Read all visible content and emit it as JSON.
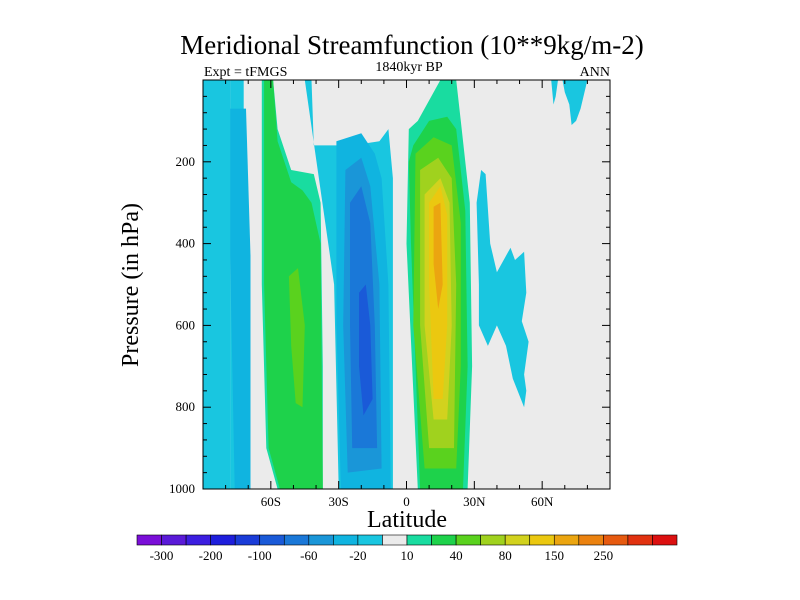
{
  "chart_data": {
    "type": "heatmap",
    "title": "Meridional Streamfunction (10**9kg/m-2)",
    "subtitle_center": "1840kyr BP",
    "subtitle_left": "Expt = tFMGS",
    "subtitle_right": "ANN",
    "xlabel": "Latitude",
    "ylabel": "Pressure (in hPa)",
    "xlim": [
      -90,
      90
    ],
    "ylim": [
      1000,
      0
    ],
    "x_ticks": [
      {
        "value": -60,
        "label": "60S"
      },
      {
        "value": -30,
        "label": "30S"
      },
      {
        "value": 0,
        "label": "0"
      },
      {
        "value": 30,
        "label": "30N"
      },
      {
        "value": 60,
        "label": "60N"
      }
    ],
    "y_ticks": [
      {
        "value": 200,
        "label": "200"
      },
      {
        "value": 400,
        "label": "400"
      },
      {
        "value": 600,
        "label": "600"
      },
      {
        "value": 800,
        "label": "800"
      },
      {
        "value": 1000,
        "label": "1000"
      }
    ],
    "colorbar": {
      "colors": [
        "#7a0fd8",
        "#5a1ad8",
        "#3c1ee0",
        "#1e1edc",
        "#1a3cd8",
        "#1a5ad8",
        "#1a78d8",
        "#1a96d8",
        "#10b4e0",
        "#19c6e0",
        "#ebebeb",
        "#19dca0",
        "#1ed24b",
        "#5ad21e",
        "#a0d21e",
        "#d2d21e",
        "#ebc810",
        "#eba510",
        "#eb8210",
        "#e65a10",
        "#e13210",
        "#dc1010"
      ],
      "labels": [
        "-300",
        "-200",
        "-100",
        "-60",
        "-20",
        "10",
        "40",
        "80",
        "150",
        "250"
      ]
    },
    "field": [
      {
        "level": -10,
        "color": "#19c6e0",
        "poly": [
          [
            -78,
            0
          ],
          [
            -72,
            0
          ],
          [
            -72,
            1000
          ],
          [
            -78,
            1000
          ]
        ]
      },
      {
        "level": -20,
        "color": "#10b4e0",
        "poly": [
          [
            -78,
            70
          ],
          [
            -71,
            70
          ],
          [
            -69,
            430
          ],
          [
            -69,
            1000
          ],
          [
            -76,
            1000
          ],
          [
            -78,
            430
          ]
        ]
      },
      {
        "level": 10,
        "color": "#19dca0",
        "poly": [
          [
            -64,
            0
          ],
          [
            -59,
            0
          ],
          [
            -57,
            120
          ],
          [
            -51,
            220
          ],
          [
            -41,
            230
          ],
          [
            -38,
            300
          ],
          [
            -37,
            700
          ],
          [
            -37,
            1000
          ],
          [
            -57,
            1000
          ],
          [
            -62,
            900
          ],
          [
            -64,
            500
          ]
        ]
      },
      {
        "level": 40,
        "color": "#1ed24b",
        "poly": [
          [
            -63,
            0
          ],
          [
            -59,
            0
          ],
          [
            -57,
            150
          ],
          [
            -51,
            250
          ],
          [
            -46,
            270
          ],
          [
            -42,
            300
          ],
          [
            -38,
            400
          ],
          [
            -37,
            1000
          ],
          [
            -56,
            1000
          ],
          [
            -61,
            900
          ],
          [
            -63,
            500
          ]
        ]
      },
      {
        "level": 80,
        "color": "#5ad21e",
        "poly": [
          [
            -52,
            480
          ],
          [
            -48,
            460
          ],
          [
            -45,
            600
          ],
          [
            -46,
            800
          ],
          [
            -49,
            790
          ],
          [
            -51,
            650
          ]
        ]
      },
      {
        "level": -10,
        "color": "#19c6e0",
        "poly": [
          [
            -90,
            0
          ],
          [
            -78,
            0
          ],
          [
            -78,
            1000
          ],
          [
            -90,
            1000
          ]
        ]
      },
      {
        "level": -10,
        "color": "#19c6e0",
        "poly": [
          [
            -45,
            0
          ],
          [
            -42,
            0
          ],
          [
            -41,
            160
          ],
          [
            -24,
            160
          ],
          [
            -12,
            150
          ],
          [
            -8,
            120
          ],
          [
            -6,
            240
          ],
          [
            -6,
            1000
          ],
          [
            -30,
            1000
          ],
          [
            -32,
            500
          ]
        ]
      },
      {
        "level": -20,
        "color": "#10b4e0",
        "poly": [
          [
            -31,
            150
          ],
          [
            -20,
            130
          ],
          [
            -14,
            180
          ],
          [
            -11,
            240
          ],
          [
            -8,
            500
          ],
          [
            -7,
            1000
          ],
          [
            -29,
            1000
          ],
          [
            -31,
            600
          ]
        ]
      },
      {
        "level": -60,
        "color": "#1a96d8",
        "poly": [
          [
            -27,
            220
          ],
          [
            -20,
            190
          ],
          [
            -16,
            260
          ],
          [
            -12,
            500
          ],
          [
            -11,
            950
          ],
          [
            -26,
            960
          ],
          [
            -28,
            600
          ]
        ]
      },
      {
        "level": -100,
        "color": "#1a78d8",
        "poly": [
          [
            -25,
            300
          ],
          [
            -20,
            260
          ],
          [
            -16,
            350
          ],
          [
            -14,
            600
          ],
          [
            -13,
            900
          ],
          [
            -24,
            900
          ],
          [
            -25,
            600
          ]
        ]
      },
      {
        "level": -150,
        "color": "#1a5ad8",
        "poly": [
          [
            -21,
            520
          ],
          [
            -18,
            500
          ],
          [
            -16,
            600
          ],
          [
            -15,
            780
          ],
          [
            -19,
            820
          ],
          [
            -21,
            700
          ]
        ]
      },
      {
        "level": 10,
        "color": "#19dca0",
        "poly": [
          [
            15,
            0
          ],
          [
            22,
            0
          ],
          [
            24,
            100
          ],
          [
            28,
            300
          ],
          [
            29,
            700
          ],
          [
            27,
            1000
          ],
          [
            5,
            1000
          ],
          [
            0,
            400
          ],
          [
            1,
            120
          ],
          [
            5,
            100
          ]
        ]
      },
      {
        "level": 40,
        "color": "#1ed24b",
        "poly": [
          [
            3,
            160
          ],
          [
            10,
            100
          ],
          [
            18,
            90
          ],
          [
            22,
            120
          ],
          [
            26,
            320
          ],
          [
            27,
            700
          ],
          [
            25,
            1000
          ],
          [
            6,
            1000
          ],
          [
            2,
            400
          ],
          [
            1,
            200
          ]
        ]
      },
      {
        "level": 80,
        "color": "#5ad21e",
        "poly": [
          [
            4,
            180
          ],
          [
            12,
            140
          ],
          [
            20,
            160
          ],
          [
            24,
            350
          ],
          [
            24,
            700
          ],
          [
            22,
            950
          ],
          [
            8,
            950
          ],
          [
            3,
            600
          ]
        ]
      },
      {
        "level": 110,
        "color": "#a0d21e",
        "poly": [
          [
            6,
            220
          ],
          [
            14,
            190
          ],
          [
            20,
            240
          ],
          [
            22,
            500
          ],
          [
            21,
            900
          ],
          [
            10,
            900
          ],
          [
            6,
            600
          ]
        ]
      },
      {
        "level": 150,
        "color": "#d2d21e",
        "poly": [
          [
            8,
            280
          ],
          [
            15,
            240
          ],
          [
            19,
            300
          ],
          [
            20,
            600
          ],
          [
            18,
            830
          ],
          [
            12,
            830
          ],
          [
            8,
            600
          ]
        ]
      },
      {
        "level": 200,
        "color": "#ebc810",
        "poly": [
          [
            10,
            300
          ],
          [
            15,
            260
          ],
          [
            18,
            330
          ],
          [
            18,
            600
          ],
          [
            16,
            780
          ],
          [
            12,
            780
          ],
          [
            10,
            500
          ]
        ]
      },
      {
        "level": 250,
        "color": "#eba510",
        "poly": [
          [
            12,
            310
          ],
          [
            15,
            300
          ],
          [
            16,
            500
          ],
          [
            14,
            560
          ],
          [
            12,
            450
          ]
        ]
      },
      {
        "level": -10,
        "color": "#19c6e0",
        "poly": [
          [
            33,
            220
          ],
          [
            35,
            230
          ],
          [
            37,
            400
          ],
          [
            40,
            470
          ],
          [
            46,
            410
          ],
          [
            48,
            440
          ],
          [
            52,
            420
          ],
          [
            53,
            520
          ],
          [
            51,
            590
          ],
          [
            54,
            640
          ],
          [
            52,
            720
          ],
          [
            53,
            760
          ],
          [
            52,
            800
          ],
          [
            47,
            730
          ],
          [
            44,
            650
          ],
          [
            40,
            600
          ],
          [
            36,
            650
          ],
          [
            32,
            600
          ],
          [
            32,
            500
          ],
          [
            31,
            300
          ]
        ]
      },
      {
        "level": -10,
        "color": "#19c6e0",
        "poly": [
          [
            64,
            0
          ],
          [
            67,
            0
          ],
          [
            66,
            40
          ],
          [
            65,
            60
          ]
        ]
      },
      {
        "level": -10,
        "color": "#19c6e0",
        "poly": [
          [
            69,
            0
          ],
          [
            80,
            0
          ],
          [
            77,
            70
          ],
          [
            75,
            100
          ],
          [
            73,
            110
          ],
          [
            72,
            60
          ],
          [
            70,
            30
          ]
        ]
      }
    ]
  }
}
